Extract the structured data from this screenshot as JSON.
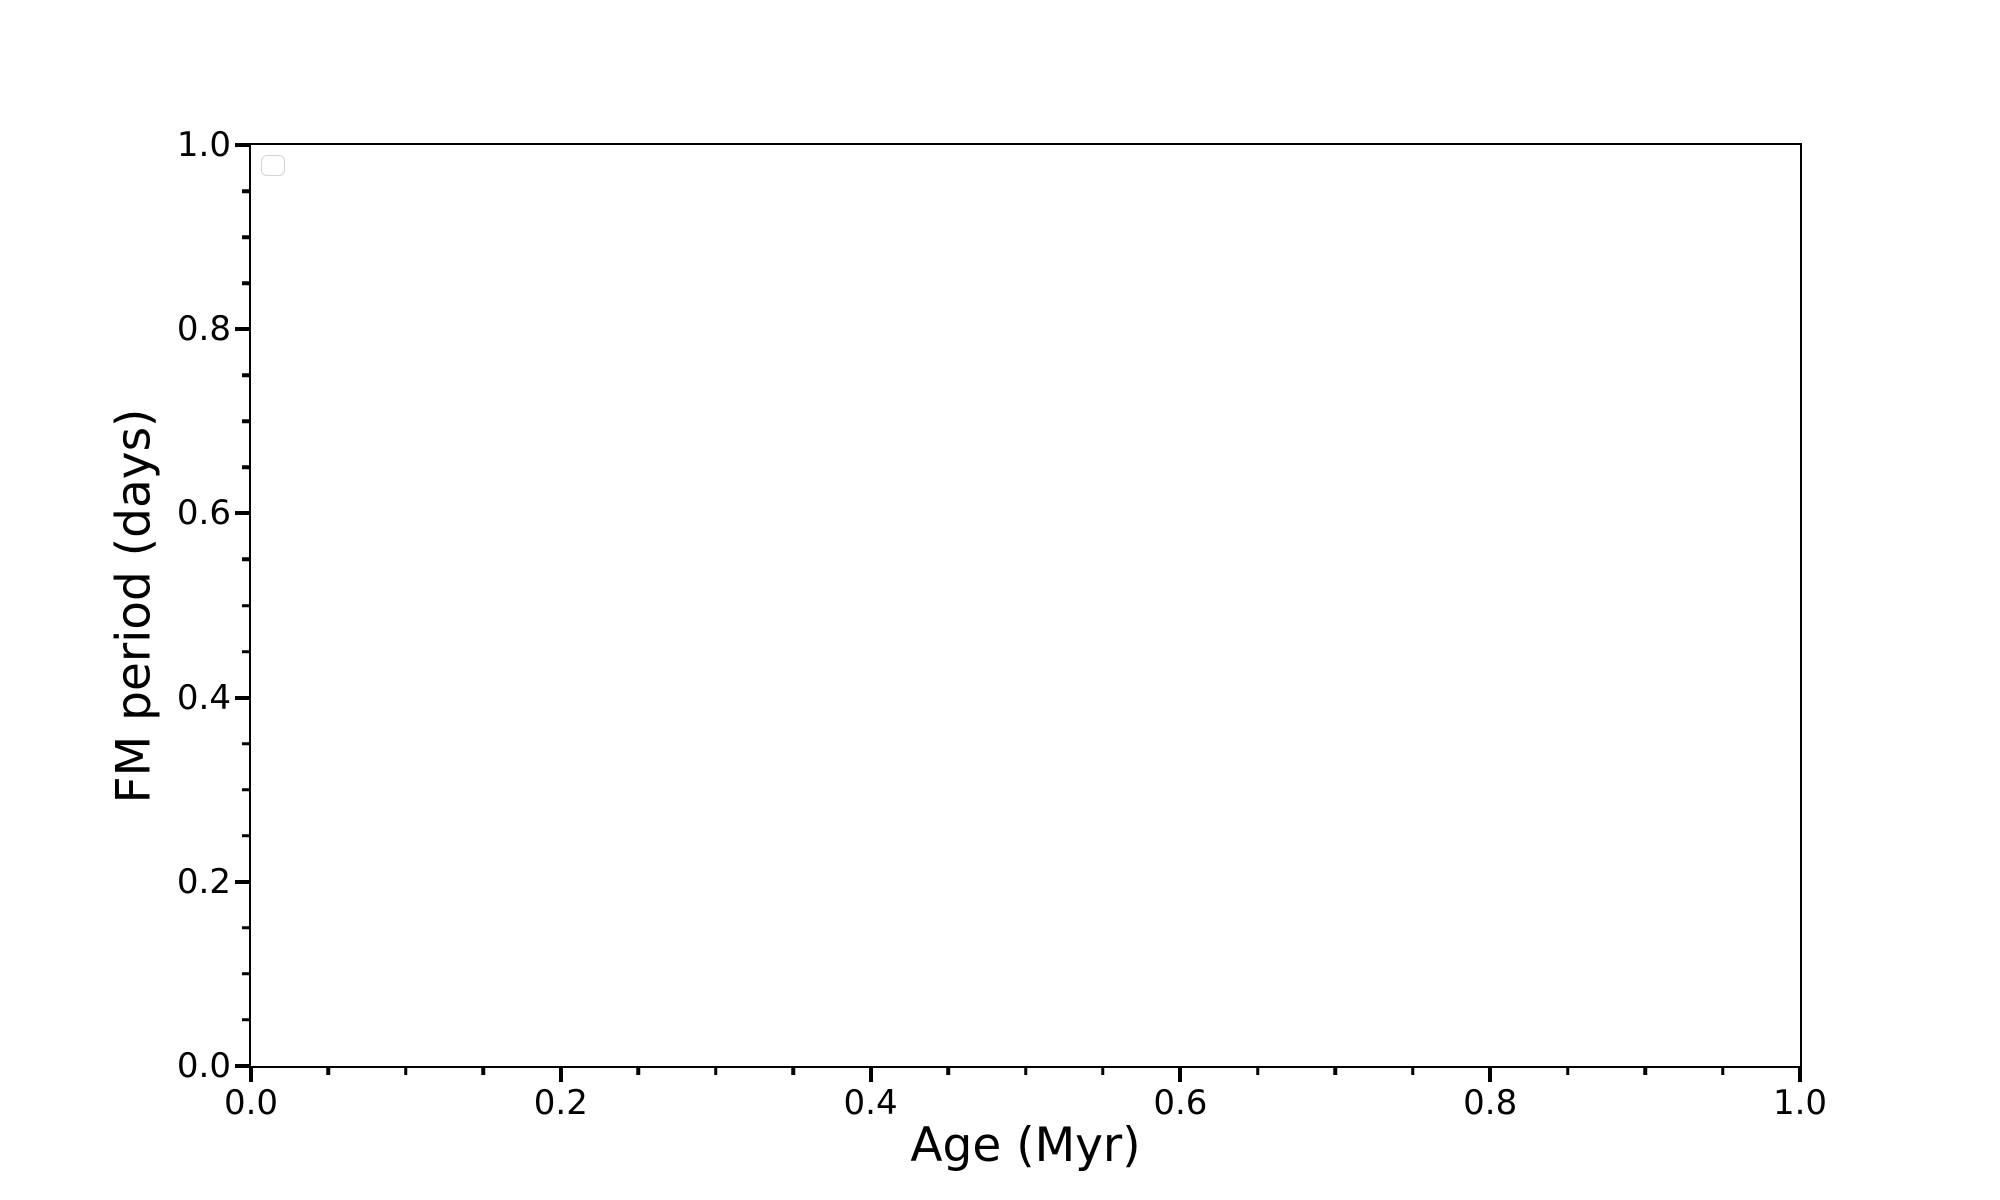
{
  "figure": {
    "background_color": "#ffffff",
    "frame_color": "#000000",
    "text_color": "#000000",
    "legend_border_color": "#d5d5d5"
  },
  "chart_data": {
    "type": "scatter",
    "title": "",
    "xlabel": "Age (Myr)",
    "ylabel": "FM period (days)",
    "xlim": [
      0.0,
      1.0
    ],
    "ylim": [
      0.0,
      1.0
    ],
    "x_major_ticks": [
      0.0,
      0.2,
      0.4,
      0.6,
      0.8,
      1.0
    ],
    "x_tick_labels": [
      "0.0",
      "0.2",
      "0.4",
      "0.6",
      "0.8",
      "1.0"
    ],
    "y_major_ticks": [
      0.0,
      0.2,
      0.4,
      0.6,
      0.8,
      1.0
    ],
    "y_tick_labels": [
      "0.0",
      "0.2",
      "0.4",
      "0.6",
      "0.8",
      "1.0"
    ],
    "minor_tick_step": 0.05,
    "grid": false,
    "legend": {
      "visible": true,
      "position": "upper-left",
      "entries": []
    },
    "series": []
  }
}
